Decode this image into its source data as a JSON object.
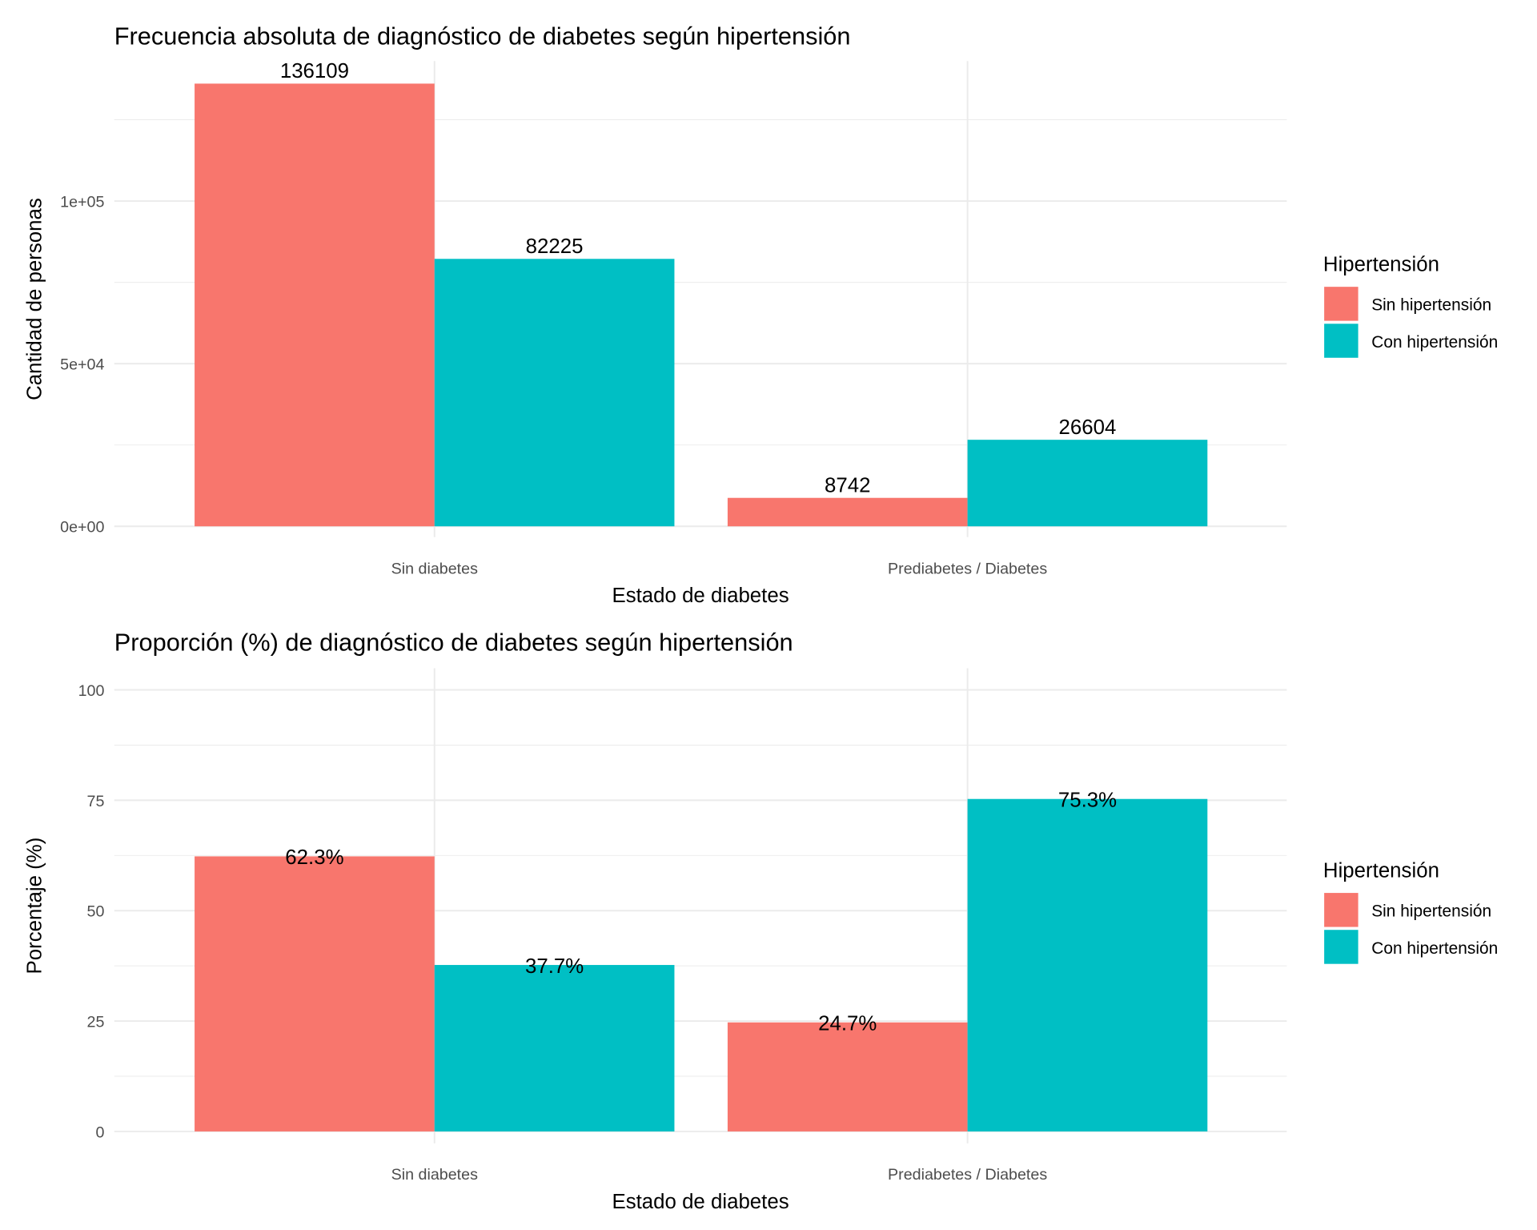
{
  "colors": {
    "sin": "#F8766D",
    "con": "#00BFC4"
  },
  "chart_data": [
    {
      "type": "bar",
      "title": "Frecuencia absoluta de diagnóstico de diabetes según hipertensión",
      "xlabel": "Estado de diabetes",
      "ylabel": "Cantidad de personas",
      "categories": [
        "Sin diabetes",
        "Prediabetes / Diabetes"
      ],
      "series": [
        {
          "name": "Sin hipertensión",
          "values": [
            136109,
            8742
          ],
          "labels": [
            "136109",
            "8742"
          ]
        },
        {
          "name": "Con hipertensión",
          "values": [
            82225,
            26604
          ],
          "labels": [
            "82225",
            "26604"
          ]
        }
      ],
      "ylim": [
        0,
        146000
      ],
      "yticks": [
        0,
        50000,
        100000
      ],
      "ytick_labels": [
        "0e+00",
        "5e+04",
        "1e+05"
      ],
      "minor_ticks": [
        25000,
        75000,
        125000
      ],
      "label_position": "above",
      "legend": {
        "title": "Hipertensión",
        "placement": "right"
      },
      "grid": true
    },
    {
      "type": "bar",
      "title": "Proporción (%) de diagnóstico de diabetes según hipertensión",
      "xlabel": "Estado de diabetes",
      "ylabel": "Porcentaje (%)",
      "categories": [
        "Sin diabetes",
        "Prediabetes / Diabetes"
      ],
      "series": [
        {
          "name": "Sin hipertensión",
          "values": [
            62.3,
            24.7
          ],
          "labels": [
            "62.3%",
            "24.7%"
          ]
        },
        {
          "name": "Con hipertensión",
          "values": [
            37.7,
            75.3
          ],
          "labels": [
            "37.7%",
            "75.3%"
          ]
        }
      ],
      "ylim": [
        0,
        105
      ],
      "yticks": [
        0,
        25,
        50,
        75,
        100
      ],
      "ytick_labels": [
        "0",
        "25",
        "50",
        "75",
        "100"
      ],
      "minor_ticks": [
        12.5,
        37.5,
        62.5,
        87.5
      ],
      "label_position": "center-top",
      "legend": {
        "title": "Hipertensión",
        "placement": "right"
      },
      "grid": true
    }
  ]
}
